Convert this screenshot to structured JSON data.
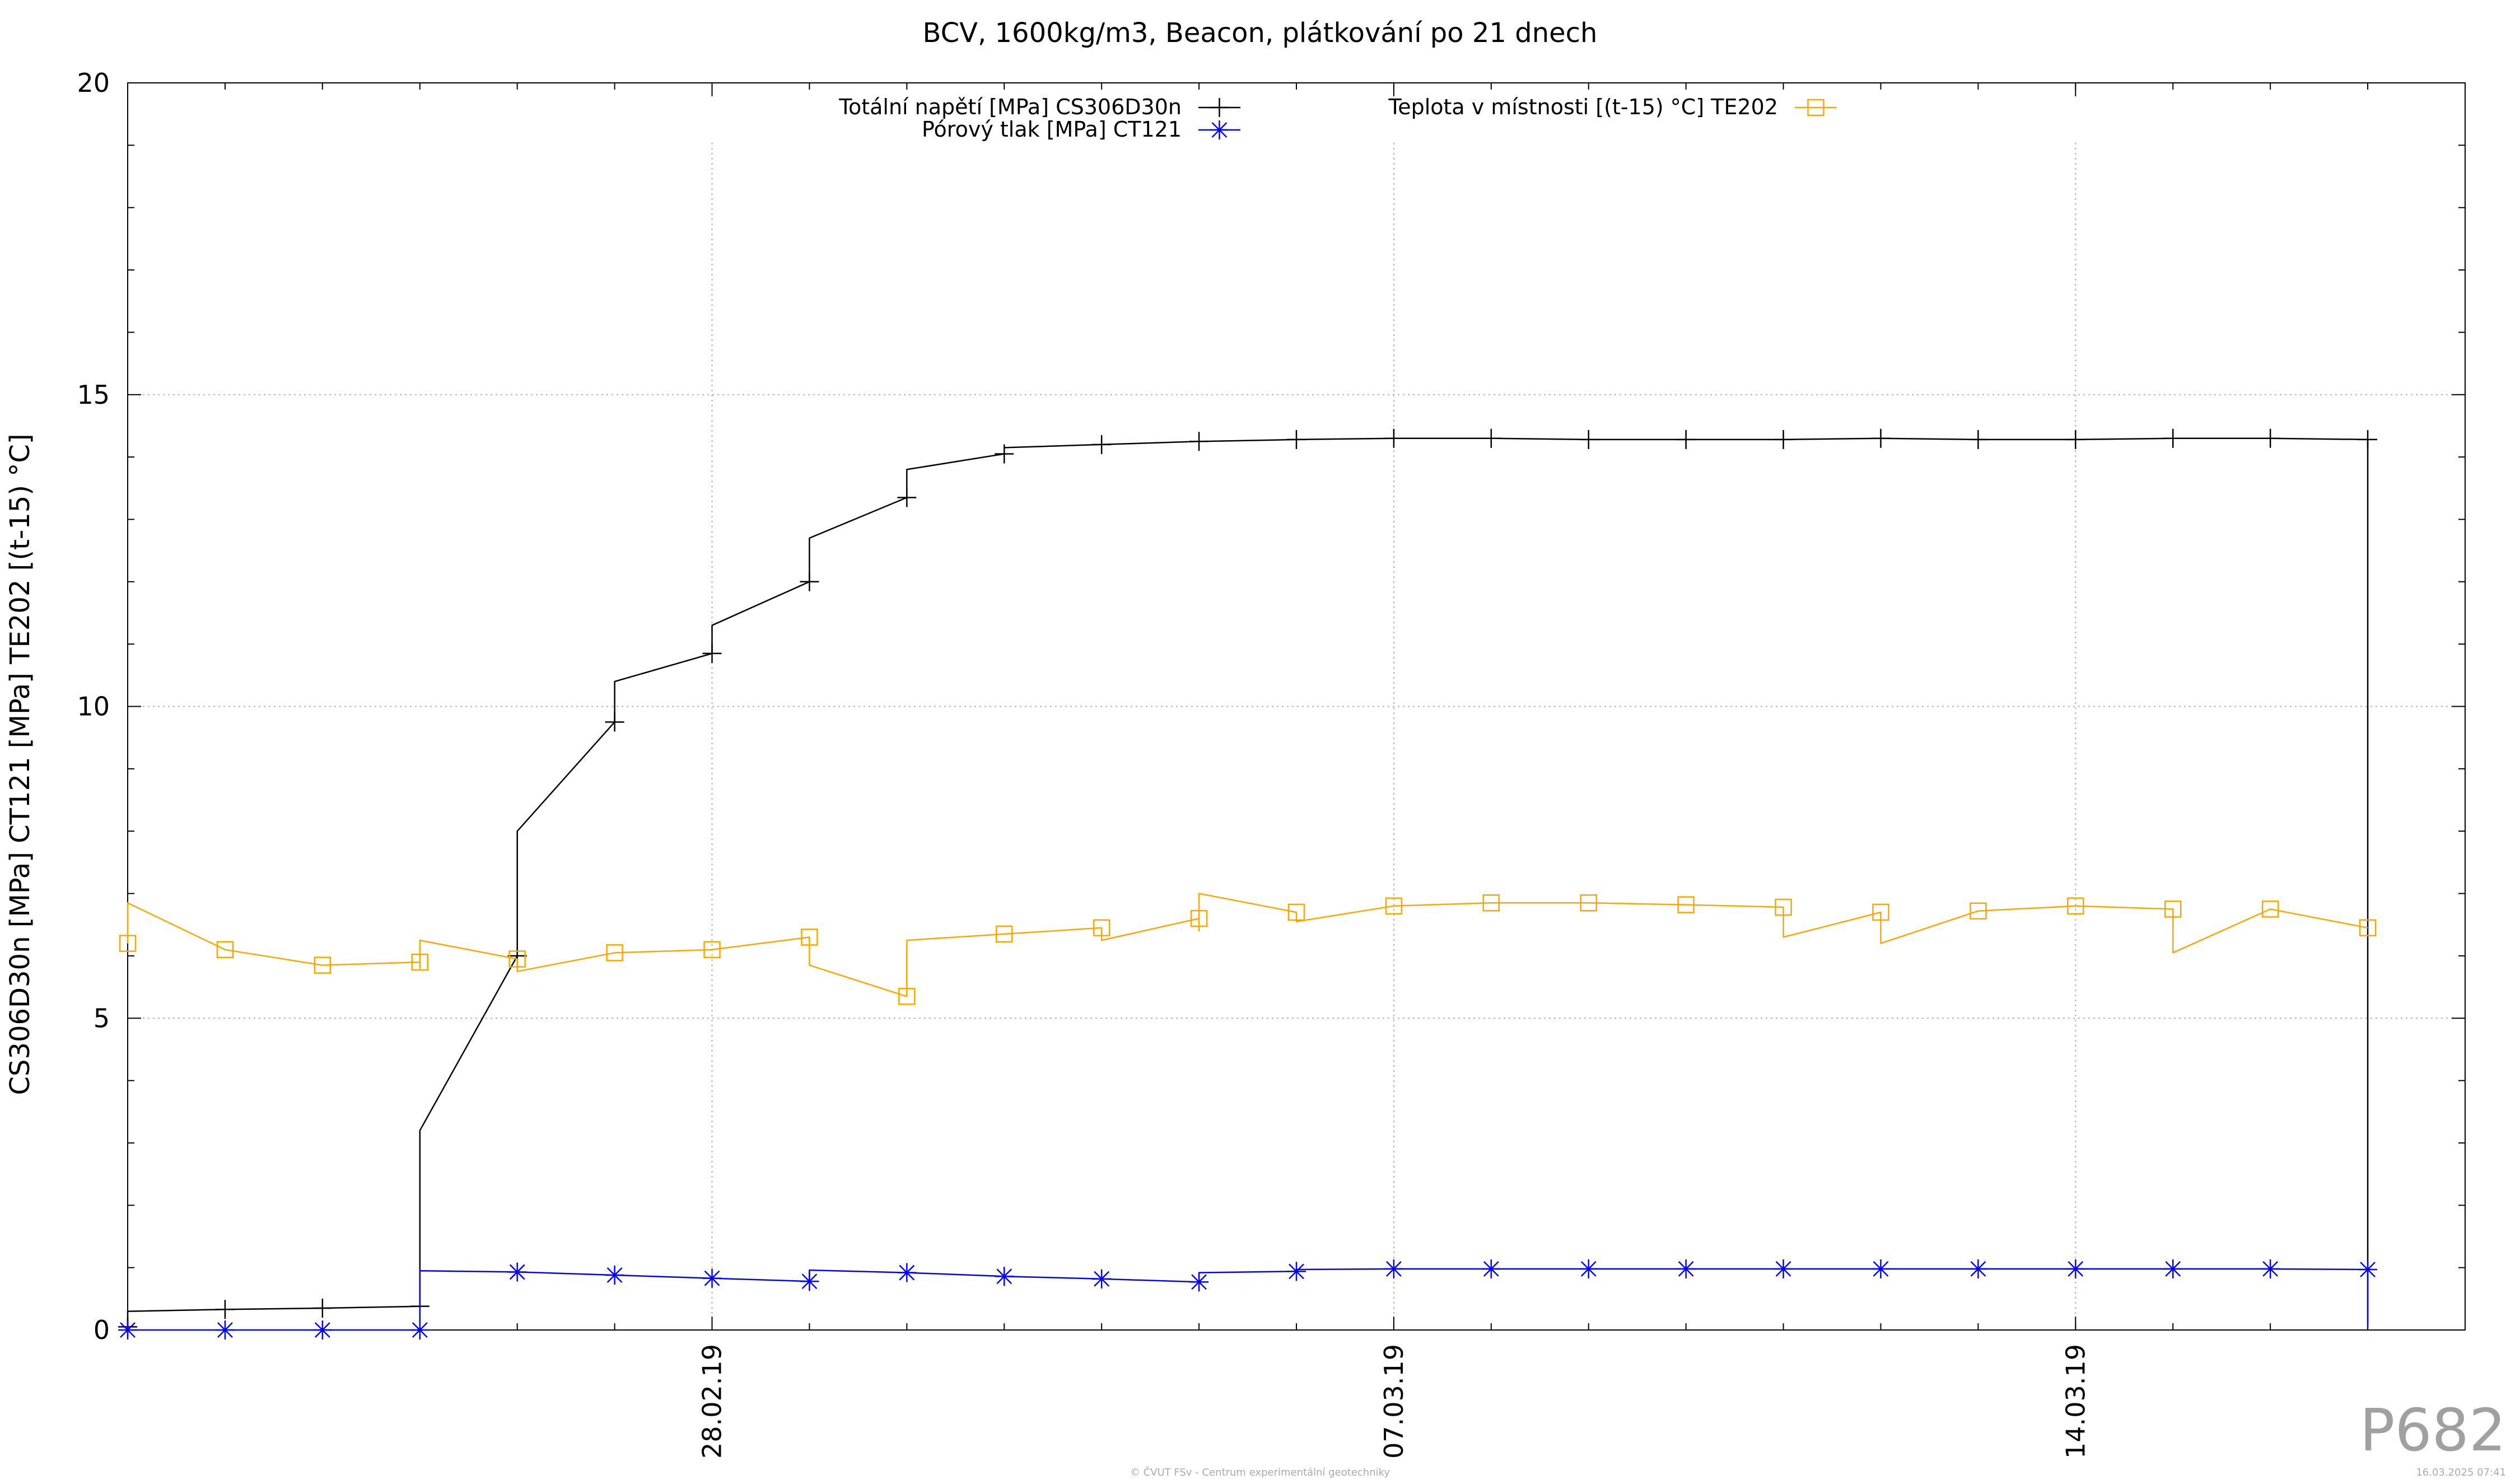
{
  "chart_data": {
    "type": "line",
    "title": "BCV, 1600kg/m3, Beacon, plátkování po 21 dnech",
    "ylabel": "CS306D30n [MPa] CT121 [MPa] TE202 [(t-15) °C]",
    "xlabel": "",
    "x_axis": "date",
    "xlim": [
      "2019-02-22",
      "2019-03-18"
    ],
    "ylim": [
      0,
      20
    ],
    "y_ticks": [
      0,
      5,
      10,
      15,
      20
    ],
    "x_ticks": [
      {
        "label": "28.02.19",
        "date": "2019-02-28"
      },
      {
        "label": "07.03.19",
        "date": "2019-03-07"
      },
      {
        "label": "14.03.19",
        "date": "2019-03-14"
      }
    ],
    "grid": true,
    "legend_position": "top",
    "series": [
      {
        "name": "Totální napětí [MPa] CS306D30n",
        "color": "#000000",
        "marker": "plus",
        "x": [
          "2019-02-22",
          "2019-02-22",
          "2019-02-22",
          "2019-02-23",
          "2019-02-24",
          "2019-02-25",
          "2019-02-25",
          "2019-02-25",
          "2019-02-25",
          "2019-02-26",
          "2019-02-26",
          "2019-02-27",
          "2019-02-27",
          "2019-02-28",
          "2019-02-28",
          "2019-03-01",
          "2019-03-01",
          "2019-03-02",
          "2019-03-02",
          "2019-03-03",
          "2019-03-03",
          "2019-03-04",
          "2019-03-05",
          "2019-03-06",
          "2019-03-07",
          "2019-03-08",
          "2019-03-09",
          "2019-03-10",
          "2019-03-11",
          "2019-03-12",
          "2019-03-13",
          "2019-03-14",
          "2019-03-15",
          "2019-03-16",
          "2019-03-17",
          "2019-03-17",
          "2019-03-17",
          "2019-03-17"
        ],
        "y": [
          0.05,
          0.2,
          0.3,
          0.33,
          0.35,
          0.38,
          0.4,
          1.5,
          3.2,
          6.0,
          8.0,
          9.75,
          10.4,
          10.85,
          11.3,
          12.0,
          12.7,
          13.35,
          13.8,
          14.05,
          14.15,
          14.2,
          14.25,
          14.28,
          14.3,
          14.3,
          14.28,
          14.28,
          14.28,
          14.3,
          14.28,
          14.28,
          14.3,
          14.3,
          14.28,
          14.28,
          14.15,
          0.1
        ]
      },
      {
        "name": "Pórový tlak [MPa] CT121",
        "color": "#0000ff",
        "marker": "star",
        "x": [
          "2019-02-22",
          "2019-02-23",
          "2019-02-24",
          "2019-02-25",
          "2019-02-25",
          "2019-02-25",
          "2019-02-26",
          "2019-02-27",
          "2019-02-28",
          "2019-03-01",
          "2019-03-01",
          "2019-03-01",
          "2019-03-02",
          "2019-03-03",
          "2019-03-04",
          "2019-03-05",
          "2019-03-05",
          "2019-03-05",
          "2019-03-06",
          "2019-03-06",
          "2019-03-07",
          "2019-03-08",
          "2019-03-09",
          "2019-03-10",
          "2019-03-11",
          "2019-03-12",
          "2019-03-13",
          "2019-03-14",
          "2019-03-15",
          "2019-03-16",
          "2019-03-17",
          "2019-03-17",
          "2019-03-17"
        ],
        "y": [
          0,
          0,
          0,
          0,
          0.05,
          0.95,
          0.93,
          0.88,
          0.83,
          0.78,
          0.76,
          0.96,
          0.92,
          0.86,
          0.82,
          0.77,
          0.76,
          0.92,
          0.94,
          0.97,
          0.98,
          0.98,
          0.98,
          0.98,
          0.98,
          0.98,
          0.98,
          0.98,
          0.98,
          0.98,
          0.97,
          0.95,
          0.03
        ]
      },
      {
        "name": "Teplota v místnosti [(t-15) °C] TE202",
        "color": "#ffa500",
        "marker": "square",
        "x": [
          "2019-02-22",
          "2019-02-22",
          "2019-02-23",
          "2019-02-24",
          "2019-02-25",
          "2019-02-25",
          "2019-02-25",
          "2019-02-25",
          "2019-02-26",
          "2019-02-26",
          "2019-02-27",
          "2019-02-28",
          "2019-03-01",
          "2019-03-01",
          "2019-03-01",
          "2019-03-02",
          "2019-03-02",
          "2019-03-03",
          "2019-03-04",
          "2019-03-04",
          "2019-03-05",
          "2019-03-05",
          "2019-03-05",
          "2019-03-06",
          "2019-03-06",
          "2019-03-07",
          "2019-03-08",
          "2019-03-09",
          "2019-03-10",
          "2019-03-11",
          "2019-03-11",
          "2019-03-12",
          "2019-03-12",
          "2019-03-13",
          "2019-03-14",
          "2019-03-15",
          "2019-03-15",
          "2019-03-16",
          "2019-03-17"
        ],
        "y": [
          6.2,
          6.85,
          6.1,
          5.85,
          5.9,
          5.8,
          6.0,
          6.25,
          5.95,
          5.75,
          6.05,
          6.1,
          6.3,
          6.25,
          5.85,
          5.35,
          6.25,
          6.35,
          6.45,
          6.25,
          6.6,
          6.4,
          7.0,
          6.7,
          6.55,
          6.8,
          6.85,
          6.85,
          6.82,
          6.78,
          6.3,
          6.7,
          6.2,
          6.72,
          6.8,
          6.75,
          6.05,
          6.75,
          6.45
        ]
      }
    ]
  },
  "footer": {
    "credit": "© ČVUT FSv - Centrum experimentální geotechniky",
    "timestamp": "16.03.2025 07:41",
    "plot_id": "P682"
  }
}
